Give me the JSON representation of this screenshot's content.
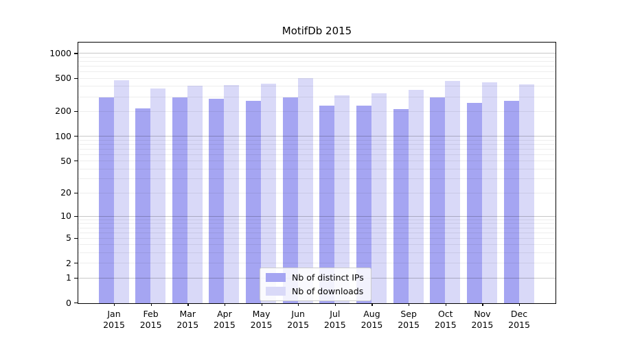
{
  "chart_data": {
    "type": "bar",
    "title": "MotifDb 2015",
    "categories": [
      "Jan",
      "Feb",
      "Mar",
      "Apr",
      "May",
      "Jun",
      "Jul",
      "Aug",
      "Sep",
      "Oct",
      "Nov",
      "Dec"
    ],
    "category_year": "2015",
    "series": [
      {
        "name": "Nb of distinct IPs",
        "color": "#a5a5f2",
        "values": [
          295,
          221,
          295,
          289,
          273,
          295,
          239,
          239,
          217,
          300,
          258,
          273
        ]
      },
      {
        "name": "Nb of downloads",
        "color": "#d9d9f8",
        "values": [
          484,
          385,
          408,
          416,
          432,
          503,
          318,
          331,
          364,
          466,
          457,
          424
        ]
      }
    ],
    "yscale": "log1p",
    "yticks": [
      0,
      1,
      2,
      5,
      10,
      20,
      50,
      100,
      200,
      500,
      1000
    ],
    "ylim": [
      0,
      1380
    ],
    "grid": true,
    "grid_on_top": true,
    "legend_position": "inside lower center",
    "colors": {
      "major_grid": "#c6c6c6",
      "minor_grid": "#ededed",
      "spine": "#000000"
    }
  }
}
